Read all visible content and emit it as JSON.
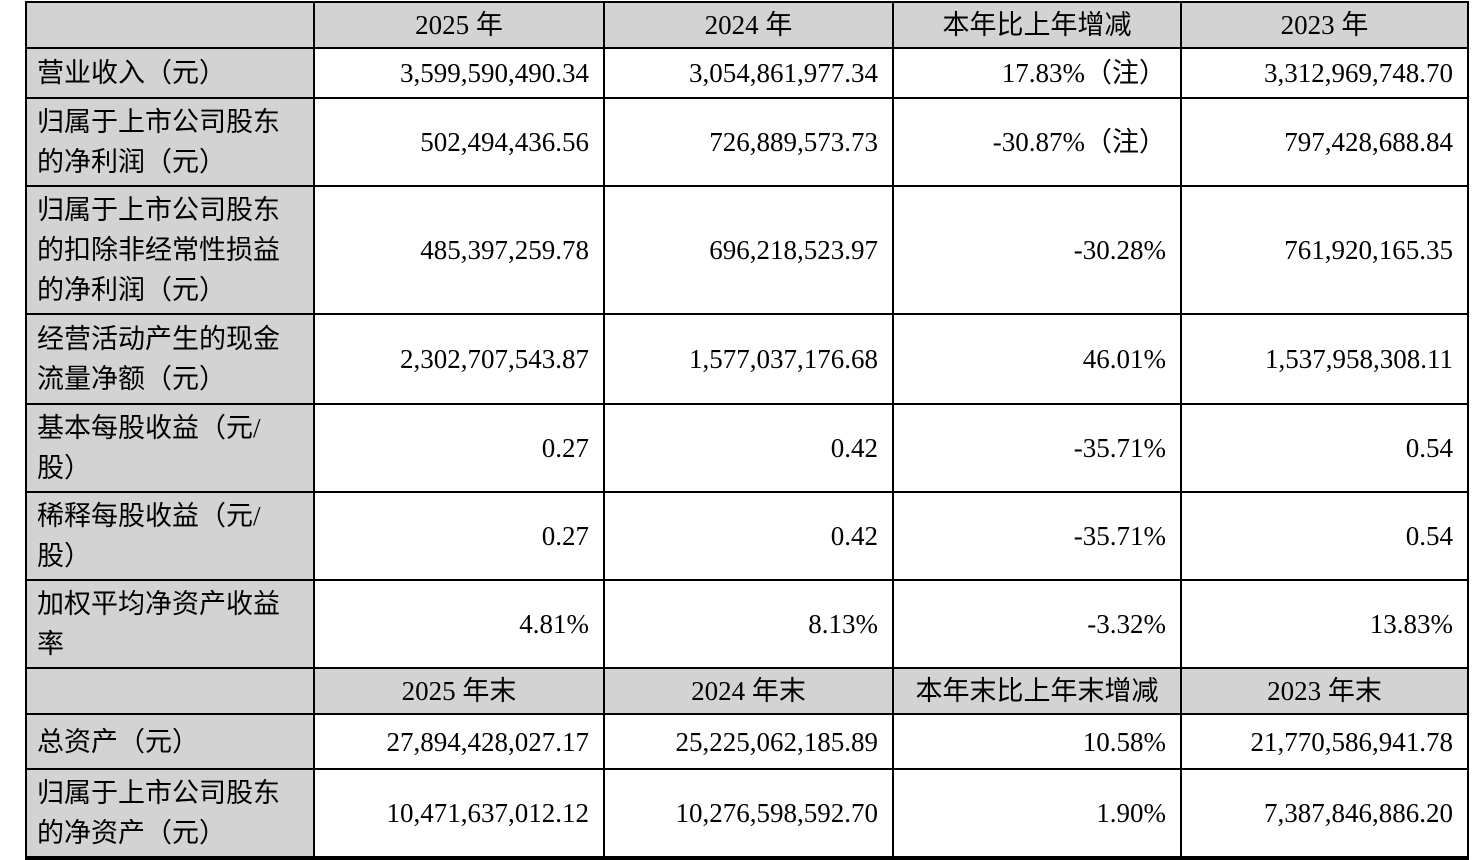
{
  "colors": {
    "grid": "#000000",
    "shade": "#d3d3d3",
    "background": "#ffffff",
    "text": "#000000"
  },
  "table": {
    "section1": {
      "header": {
        "c0": "",
        "c1": "2025 年",
        "c2": "2024 年",
        "c3": "本年比上年增减",
        "c4": "2023 年"
      },
      "rows": [
        {
          "label": "营业收入（元）",
          "v2025": "3,599,590,490.34",
          "v2024": "3,054,861,977.34",
          "change": "17.83%（注）",
          "v2023": "3,312,969,748.70"
        },
        {
          "label": "归属于上市公司股东\n的净利润（元）",
          "v2025": "502,494,436.56",
          "v2024": "726,889,573.73",
          "change": "-30.87%（注）",
          "v2023": "797,428,688.84"
        },
        {
          "label": "归属于上市公司股东\n的扣除非经常性损益\n的净利润（元）",
          "v2025": "485,397,259.78",
          "v2024": "696,218,523.97",
          "change": "-30.28%",
          "v2023": "761,920,165.35"
        },
        {
          "label": "经营活动产生的现金\n流量净额（元）",
          "v2025": "2,302,707,543.87",
          "v2024": "1,577,037,176.68",
          "change": "46.01%",
          "v2023": "1,537,958,308.11"
        },
        {
          "label": "基本每股收益（元/\n股）",
          "v2025": "0.27",
          "v2024": "0.42",
          "change": "-35.71%",
          "v2023": "0.54"
        },
        {
          "label": "稀释每股收益（元/\n股）",
          "v2025": "0.27",
          "v2024": "0.42",
          "change": "-35.71%",
          "v2023": "0.54"
        },
        {
          "label": "加权平均净资产收益\n率",
          "v2025": "4.81%",
          "v2024": "8.13%",
          "change": "-3.32%",
          "v2023": "13.83%"
        }
      ]
    },
    "section2": {
      "header": {
        "c0": "",
        "c1": "2025 年末",
        "c2": "2024 年末",
        "c3": "本年末比上年末增减",
        "c4": "2023 年末"
      },
      "rows": [
        {
          "label": "总资产（元）",
          "v2025": "27,894,428,027.17",
          "v2024": "25,225,062,185.89",
          "change": "10.58%",
          "v2023": "21,770,586,941.78"
        },
        {
          "label": "归属于上市公司股东\n的净资产（元）",
          "v2025": "10,471,637,012.12",
          "v2024": "10,276,598,592.70",
          "change": "1.90%",
          "v2023": "7,387,846,886.20"
        }
      ]
    }
  }
}
